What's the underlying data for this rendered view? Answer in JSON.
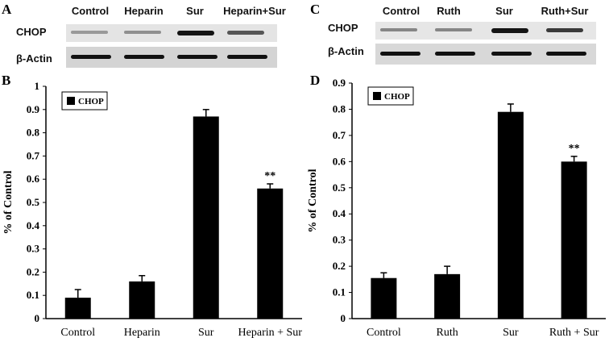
{
  "panels": {
    "A": {
      "letter": "A"
    },
    "B": {
      "letter": "B"
    },
    "C": {
      "letter": "C"
    },
    "D": {
      "letter": "D"
    }
  },
  "blot_left": {
    "lanes": [
      "Control",
      "Heparin",
      "Sur",
      "Heparin+Sur"
    ],
    "rows": [
      "CHOP",
      "β-Actin"
    ],
    "chop_intensity": [
      0.25,
      0.3,
      0.95,
      0.6
    ],
    "actin_intensity": [
      0.9,
      0.9,
      0.9,
      0.9
    ]
  },
  "blot_right": {
    "lanes": [
      "Control",
      "Ruth",
      "Sur",
      "Ruth+Sur"
    ],
    "rows": [
      "CHOP",
      "β-Actin"
    ],
    "chop_intensity": [
      0.35,
      0.35,
      0.95,
      0.75
    ],
    "actin_intensity": [
      0.9,
      0.9,
      0.9,
      0.9
    ]
  },
  "chart_data": [
    {
      "type": "bar",
      "panel": "B",
      "categories": [
        "Control",
        "Heparin",
        "Sur",
        "Heparin + Sur"
      ],
      "series": [
        {
          "name": "CHOP",
          "values": [
            0.09,
            0.16,
            0.87,
            0.56
          ],
          "errors": [
            0.035,
            0.025,
            0.03,
            0.02
          ],
          "color": "#000000"
        }
      ],
      "annotations": [
        "",
        "",
        "",
        "**"
      ],
      "ylabel": "% of Control",
      "ylim": [
        0,
        1
      ],
      "yticks": [
        "0",
        "0.1",
        "0.2",
        "0.3",
        "0.4",
        "0.5",
        "0.6",
        "0.7",
        "0.8",
        "0.9",
        "1"
      ],
      "legend_position": "top-left"
    },
    {
      "type": "bar",
      "panel": "D",
      "categories": [
        "Control",
        "Ruth",
        "Sur",
        "Ruth + Sur"
      ],
      "series": [
        {
          "name": "CHOP",
          "values": [
            0.155,
            0.17,
            0.79,
            0.6
          ],
          "errors": [
            0.02,
            0.03,
            0.03,
            0.02
          ],
          "color": "#000000"
        }
      ],
      "annotations": [
        "",
        "",
        "",
        "**"
      ],
      "ylabel": "% of Control",
      "ylim": [
        0,
        0.9
      ],
      "yticks": [
        "0",
        "0.1",
        "0.2",
        "0.3",
        "0.4",
        "0.5",
        "0.6",
        "0.7",
        "0.8",
        "0.9"
      ],
      "legend_position": "top-left"
    }
  ]
}
